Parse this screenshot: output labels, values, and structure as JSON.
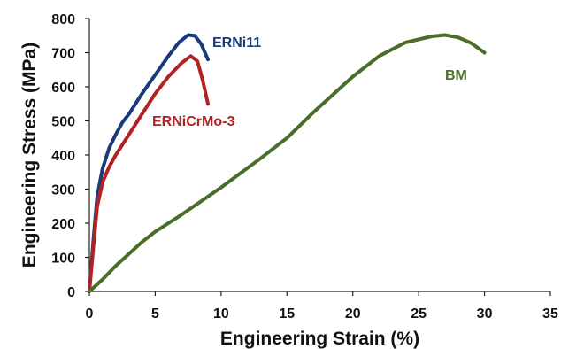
{
  "chart_data": {
    "type": "line",
    "title": "",
    "xlabel": "Engineering Strain (%)",
    "ylabel": "Engineering Stress (MPa)",
    "xlim": [
      0,
      35
    ],
    "ylim": [
      0,
      800
    ],
    "xticks": [
      0,
      5,
      10,
      15,
      20,
      25,
      30,
      35
    ],
    "yticks": [
      0,
      100,
      200,
      300,
      400,
      500,
      600,
      700,
      800
    ],
    "grid": false,
    "legend": "none",
    "series": [
      {
        "name": "ERNi11",
        "color": "#1a3a7a",
        "x": [
          0,
          0.3,
          0.6,
          1.0,
          1.5,
          2.0,
          2.5,
          3.0,
          4.0,
          5.0,
          6.0,
          6.8,
          7.5,
          8.0,
          8.5,
          9.0
        ],
        "y": [
          0,
          150,
          280,
          360,
          420,
          460,
          495,
          520,
          580,
          635,
          690,
          730,
          752,
          750,
          725,
          680
        ]
      },
      {
        "name": "ERNiCrMo-3",
        "color": "#b22222",
        "x": [
          0,
          0.3,
          0.6,
          1.0,
          1.5,
          2.0,
          3.0,
          4.0,
          5.0,
          6.0,
          7.0,
          7.7,
          8.2,
          8.6,
          9.0
        ],
        "y": [
          0,
          130,
          250,
          320,
          365,
          400,
          460,
          520,
          580,
          630,
          670,
          690,
          675,
          620,
          550
        ]
      },
      {
        "name": "BM",
        "color": "#4a6e2a",
        "x": [
          0,
          1,
          2,
          3,
          4,
          5,
          7,
          10,
          13,
          15,
          17,
          20,
          22,
          24,
          26,
          27,
          28,
          29,
          30
        ],
        "y": [
          0,
          35,
          75,
          110,
          145,
          175,
          225,
          305,
          390,
          450,
          525,
          630,
          690,
          730,
          748,
          752,
          745,
          728,
          700
        ]
      }
    ]
  }
}
